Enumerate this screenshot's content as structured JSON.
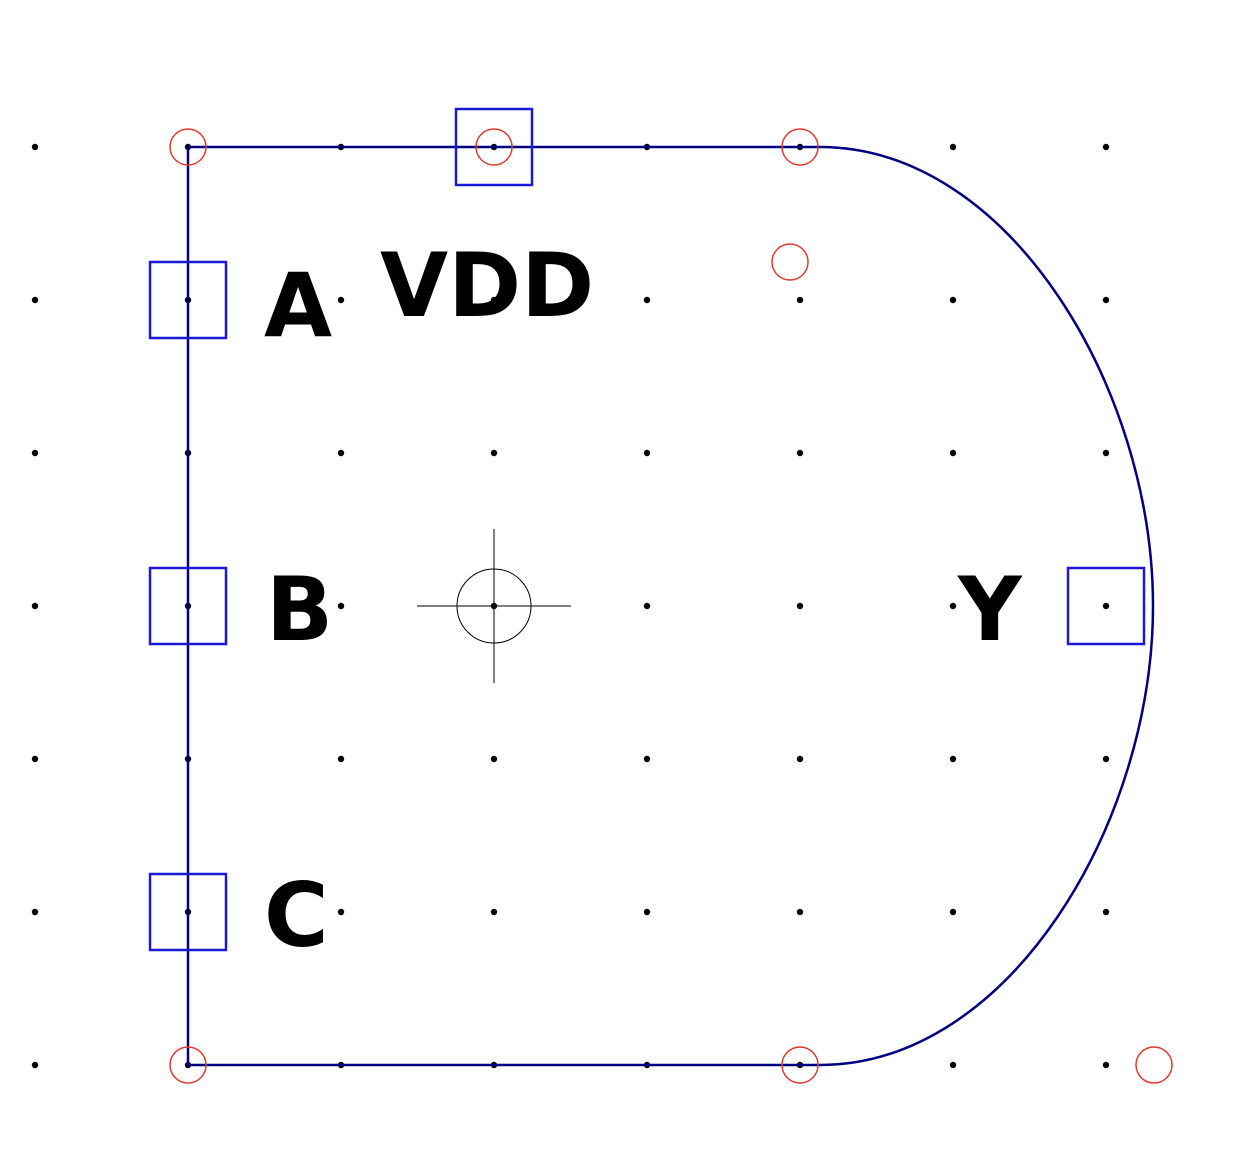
{
  "symbol": {
    "supply_label": "VDD",
    "pins": [
      {
        "id": "A",
        "label": "A"
      },
      {
        "id": "B",
        "label": "B"
      },
      {
        "id": "C",
        "label": "C"
      },
      {
        "id": "Y",
        "label": "Y"
      }
    ]
  },
  "colors": {
    "background": "#ffffff",
    "body_outline": "#000080",
    "pin_box": "#1a1ad6",
    "vertex_marker": "#e03a2e",
    "grid_dot": "#000000",
    "label_text": "#000000",
    "origin_marker": "#000000"
  },
  "grid": {
    "visible": true,
    "style": "dots"
  }
}
